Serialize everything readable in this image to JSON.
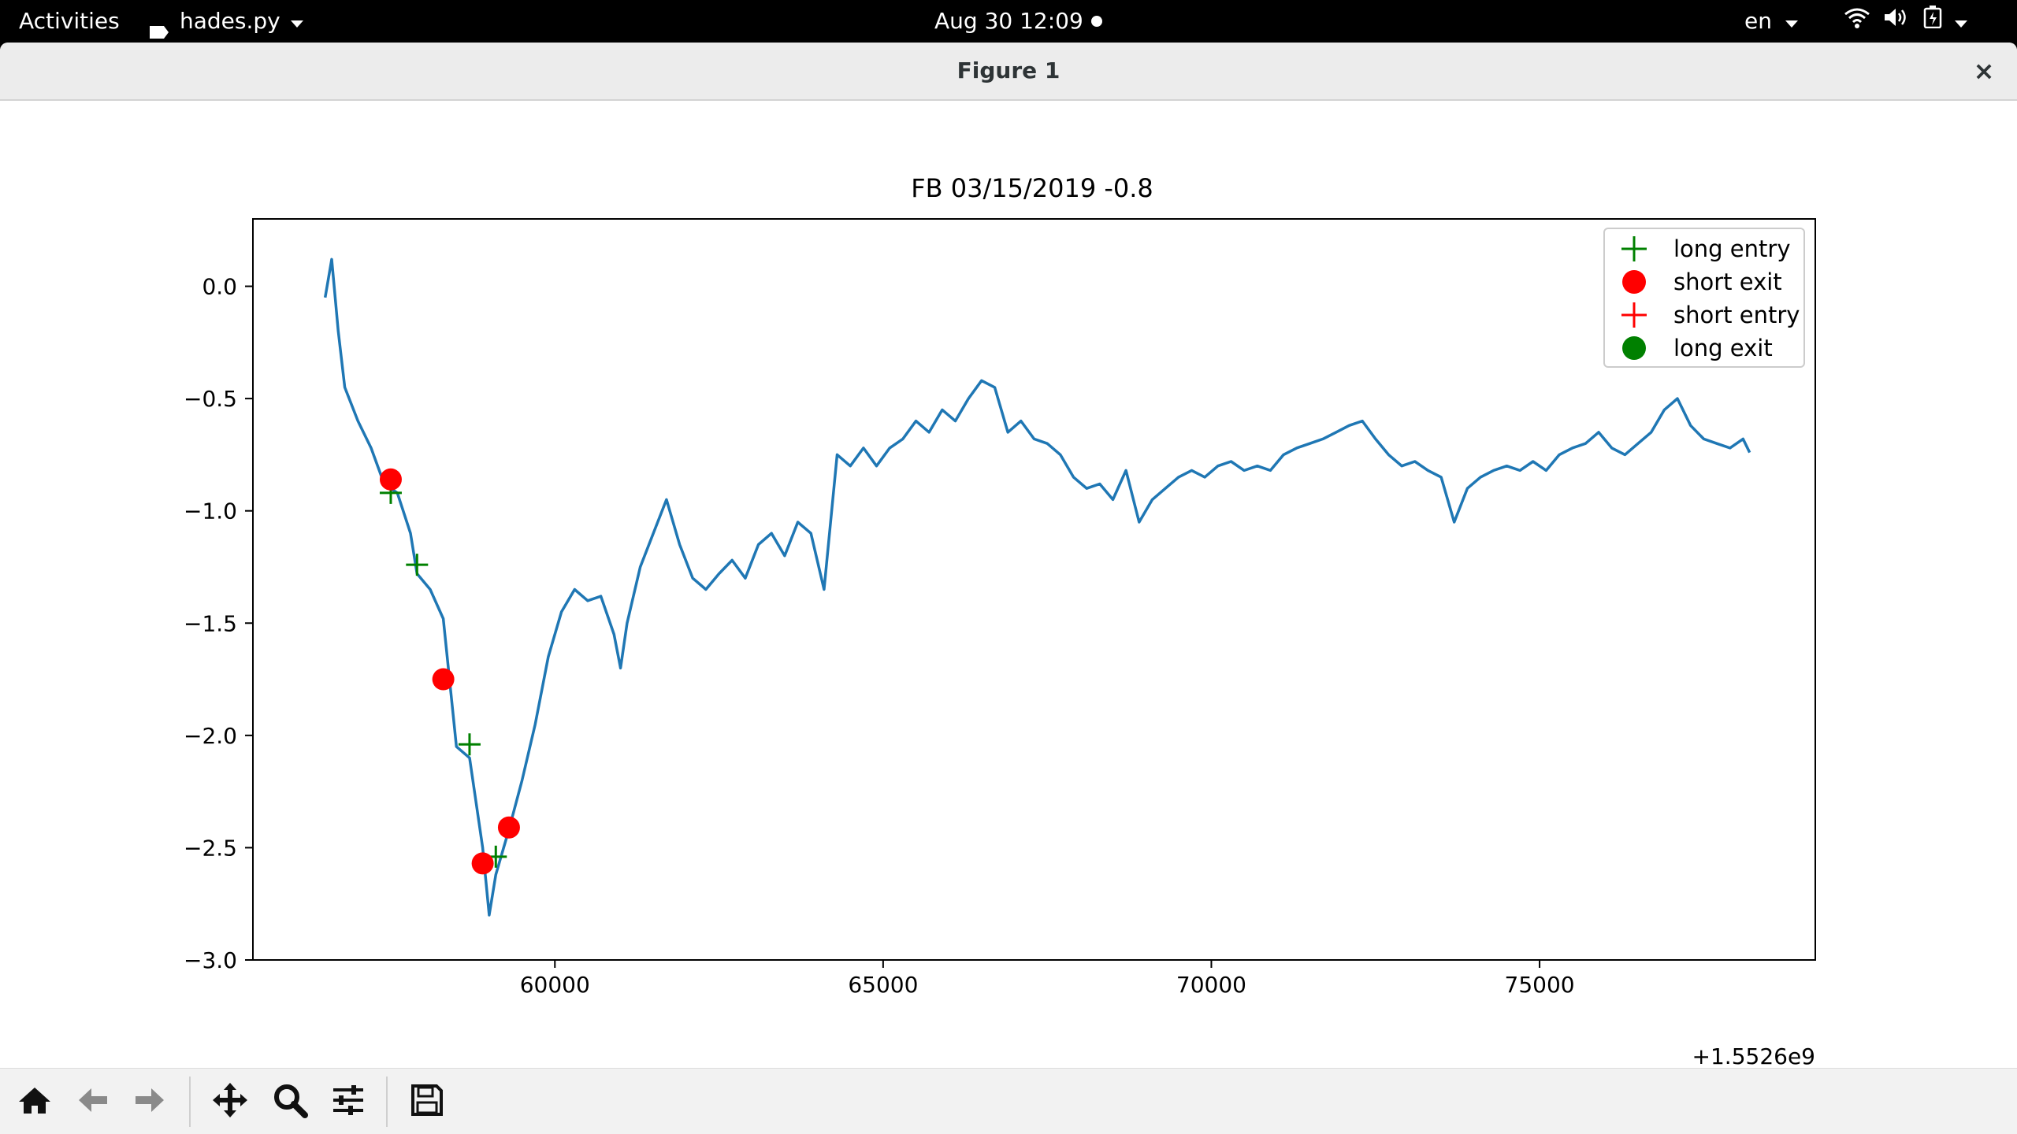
{
  "topbar": {
    "activities": "Activities",
    "app_name": "hades.py",
    "clock": "Aug 30  12:09",
    "language": "en"
  },
  "window": {
    "title": "Figure 1",
    "close_glyph": "×"
  },
  "icons": {
    "home": "home-icon",
    "back": "back-arrow-icon",
    "forward": "forward-arrow-icon",
    "pan": "pan-icon",
    "zoom": "zoom-icon",
    "configure": "configure-subplots-icon",
    "save": "save-icon",
    "wifi": "wifi-icon",
    "volume": "volume-icon",
    "battery": "battery-icon",
    "power_menu": "chevron-down-icon"
  },
  "chart_data": {
    "type": "line",
    "title": "FB 03/15/2019 -0.8",
    "xlabel": "",
    "ylabel": "",
    "x_offset_label": "+1.5526e9",
    "xlim": [
      55400,
      79200
    ],
    "ylim": [
      -3.0,
      0.3
    ],
    "x_ticks": [
      60000,
      65000,
      70000,
      75000
    ],
    "x_tick_labels": [
      "60000",
      "65000",
      "70000",
      "75000"
    ],
    "y_ticks": [
      0.0,
      -0.5,
      -1.0,
      -1.5,
      -2.0,
      -2.5,
      -3.0
    ],
    "y_tick_labels": [
      "0.0",
      "−0.5",
      "−1.0",
      "−1.5",
      "−2.0",
      "−2.5",
      "−3.0"
    ],
    "grid": false,
    "legend_position": "top-right",
    "series": [
      {
        "name": "",
        "color": "#1f77b4",
        "x": [
          56500,
          56600,
          56700,
          56800,
          57000,
          57200,
          57400,
          57600,
          57800,
          57900,
          58100,
          58300,
          58500,
          58700,
          58900,
          59000,
          59100,
          59300,
          59500,
          59700,
          59900,
          60100,
          60300,
          60500,
          60700,
          60900,
          61000,
          61100,
          61300,
          61500,
          61700,
          61900,
          62100,
          62300,
          62500,
          62700,
          62900,
          63100,
          63300,
          63500,
          63700,
          63900,
          64100,
          64300,
          64500,
          64700,
          64900,
          65100,
          65300,
          65500,
          65700,
          65900,
          66100,
          66300,
          66500,
          66700,
          66900,
          67100,
          67300,
          67500,
          67700,
          67900,
          68100,
          68300,
          68500,
          68700,
          68900,
          69100,
          69300,
          69500,
          69700,
          69900,
          70100,
          70300,
          70500,
          70700,
          70900,
          71100,
          71300,
          71500,
          71700,
          71900,
          72100,
          72300,
          72500,
          72700,
          72900,
          73100,
          73300,
          73500,
          73700,
          73900,
          74100,
          74300,
          74500,
          74700,
          74900,
          75100,
          75300,
          75500,
          75700,
          75900,
          76100,
          76300,
          76500,
          76700,
          76900,
          77100,
          77300,
          77500,
          77700,
          77900,
          78100,
          78200
        ],
        "y": [
          -0.05,
          0.12,
          -0.2,
          -0.45,
          -0.6,
          -0.72,
          -0.88,
          -0.92,
          -1.1,
          -1.28,
          -1.35,
          -1.48,
          -2.05,
          -2.1,
          -2.5,
          -2.8,
          -2.62,
          -2.42,
          -2.2,
          -1.95,
          -1.65,
          -1.45,
          -1.35,
          -1.4,
          -1.38,
          -1.55,
          -1.7,
          -1.5,
          -1.25,
          -1.1,
          -0.95,
          -1.15,
          -1.3,
          -1.35,
          -1.28,
          -1.22,
          -1.3,
          -1.15,
          -1.1,
          -1.2,
          -1.05,
          -1.1,
          -1.35,
          -0.75,
          -0.8,
          -0.72,
          -0.8,
          -0.72,
          -0.68,
          -0.6,
          -0.65,
          -0.55,
          -0.6,
          -0.5,
          -0.42,
          -0.45,
          -0.65,
          -0.6,
          -0.68,
          -0.7,
          -0.75,
          -0.85,
          -0.9,
          -0.88,
          -0.95,
          -0.82,
          -1.05,
          -0.95,
          -0.9,
          -0.85,
          -0.82,
          -0.85,
          -0.8,
          -0.78,
          -0.82,
          -0.8,
          -0.82,
          -0.75,
          -0.72,
          -0.7,
          -0.68,
          -0.65,
          -0.62,
          -0.6,
          -0.68,
          -0.75,
          -0.8,
          -0.78,
          -0.82,
          -0.85,
          -1.05,
          -0.9,
          -0.85,
          -0.82,
          -0.8,
          -0.82,
          -0.78,
          -0.82,
          -0.75,
          -0.72,
          -0.7,
          -0.65,
          -0.72,
          -0.75,
          -0.7,
          -0.65,
          -0.55,
          -0.5,
          -0.62,
          -0.68,
          -0.7,
          -0.72,
          -0.68,
          -0.74
        ]
      }
    ],
    "markers": [
      {
        "name": "long entry",
        "shape": "plus",
        "color": "#008000",
        "points": [
          {
            "x": 57500,
            "y": -0.92
          },
          {
            "x": 57900,
            "y": -1.24
          },
          {
            "x": 58700,
            "y": -2.04
          },
          {
            "x": 59100,
            "y": -2.54
          }
        ]
      },
      {
        "name": "short exit",
        "shape": "circle",
        "color": "#ff0000",
        "points": [
          {
            "x": 57500,
            "y": -0.86
          },
          {
            "x": 58300,
            "y": -1.75
          },
          {
            "x": 58900,
            "y": -2.57
          },
          {
            "x": 59300,
            "y": -2.41
          }
        ]
      },
      {
        "name": "short entry",
        "shape": "plus",
        "color": "#ff0000",
        "points": []
      },
      {
        "name": "long exit",
        "shape": "circle",
        "color": "#008000",
        "points": []
      }
    ]
  }
}
